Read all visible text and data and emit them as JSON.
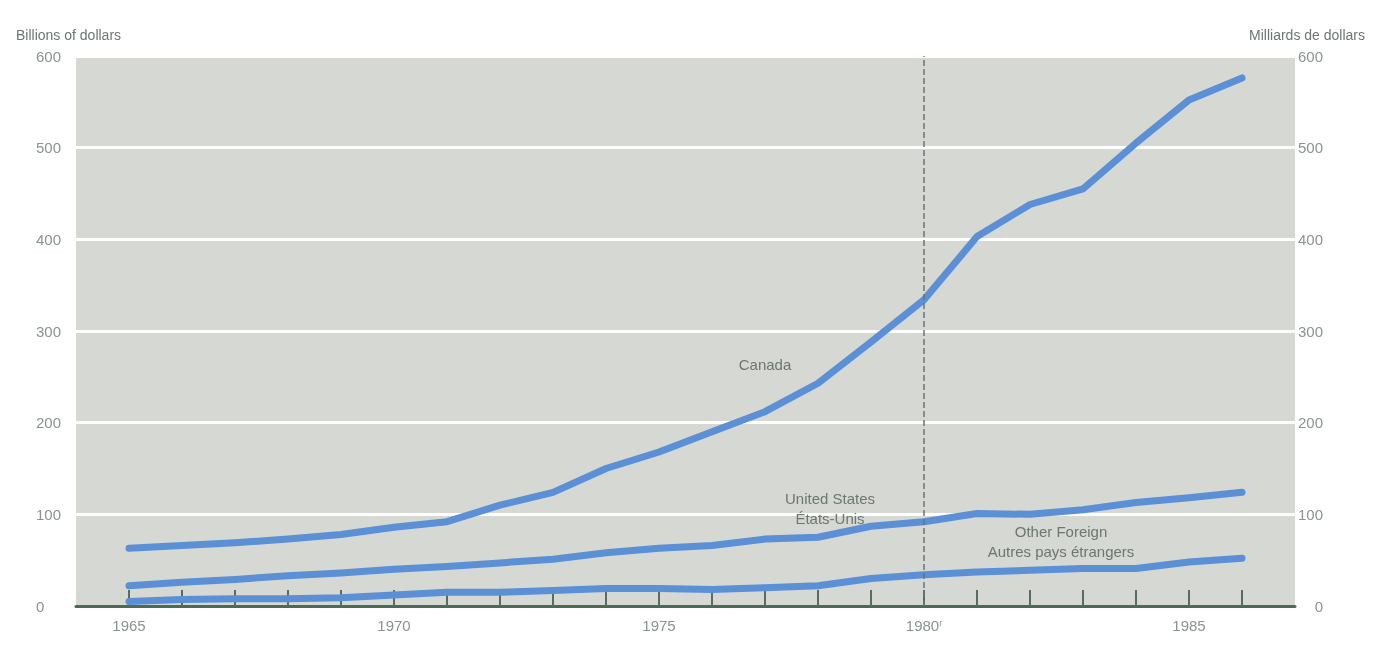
{
  "chart_data": {
    "type": "line",
    "ylabel": "Billions of dollars",
    "y2label": "Milliards de dollars",
    "x": [
      1965,
      1966,
      1967,
      1968,
      1969,
      1970,
      1971,
      1972,
      1973,
      1974,
      1975,
      1976,
      1977,
      1978,
      1979,
      1980,
      1981,
      1982,
      1983,
      1984,
      1985,
      1986
    ],
    "series": [
      {
        "name": "Canada",
        "color": "#5b8fd6",
        "values": [
          63,
          66,
          69,
          73,
          78,
          86,
          92,
          110,
          124,
          150,
          168,
          190,
          212,
          243,
          288,
          334,
          403,
          438,
          455,
          505,
          552,
          576
        ]
      },
      {
        "name": "United States\nÉtats-Unis",
        "color": "#5b8fd6",
        "values": [
          22,
          26,
          29,
          33,
          36,
          40,
          43,
          47,
          51,
          58,
          63,
          66,
          73,
          75,
          87,
          92,
          101,
          100,
          105,
          113,
          118,
          124
        ]
      },
      {
        "name": "Other Foreign\nAutres pays étrangers",
        "color": "#5b8fd6",
        "values": [
          5,
          7,
          8,
          8,
          9,
          12,
          15,
          15,
          17,
          19,
          19,
          18,
          20,
          22,
          30,
          34,
          37,
          39,
          41,
          41,
          48,
          52
        ]
      }
    ],
    "xlim": [
      1964,
      1987
    ],
    "xticks": [
      1965,
      {
        "value": 1966,
        "label": null
      },
      {
        "value": 1967,
        "label": null
      },
      {
        "value": 1968,
        "label": null
      },
      {
        "value": 1969,
        "label": null
      },
      1970,
      {
        "value": 1971,
        "label": null
      },
      {
        "value": 1972,
        "label": null
      },
      {
        "value": 1973,
        "label": null
      },
      {
        "value": 1974,
        "label": null
      },
      1975,
      {
        "value": 1976,
        "label": null
      },
      {
        "value": 1977,
        "label": null
      },
      {
        "value": 1978,
        "label": null
      },
      {
        "value": 1979,
        "label": null
      },
      {
        "value": 1980,
        "label": "1980$^{r}$"
      },
      {
        "value": 1981,
        "label": null
      },
      {
        "value": 1982,
        "label": null
      },
      {
        "value": 1983,
        "label": null
      },
      {
        "value": 1984,
        "label": null
      },
      1985,
      {
        "value": 1986,
        "label": null
      }
    ],
    "ylim": [
      0,
      600
    ],
    "yticks": [
      0,
      100,
      200,
      300,
      400,
      500,
      600
    ],
    "y2lim": [
      0,
      600
    ],
    "y2ticks": [
      0,
      100,
      200,
      300,
      400,
      500,
      600
    ],
    "ref_lines": [
      {
        "axis": "x",
        "value": 1980,
        "line_style": "dashed",
        "color": "#6b7570"
      }
    ],
    "grid": "y",
    "legend": false,
    "marker": "none",
    "line_style": "solid"
  }
}
